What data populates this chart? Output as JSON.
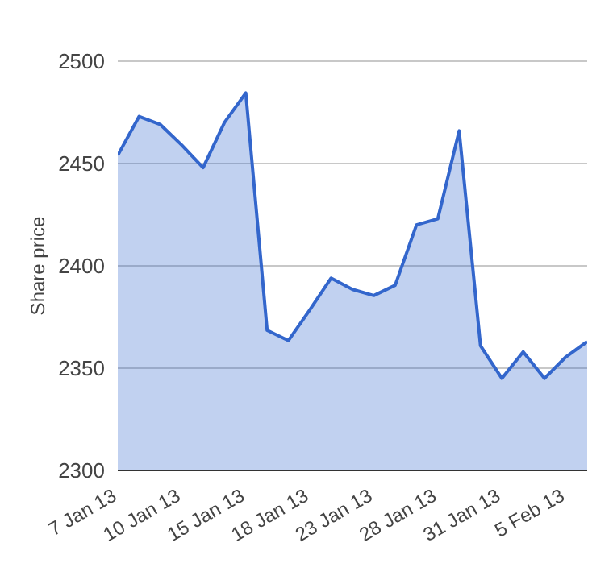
{
  "chart_data": {
    "type": "area",
    "ylabel": "Share price",
    "categories": [
      "7 Jan 13",
      null,
      null,
      "10 Jan 13",
      null,
      null,
      "15 Jan 13",
      null,
      null,
      "18 Jan 13",
      null,
      null,
      "23 Jan 13",
      null,
      null,
      "28 Jan 13",
      null,
      null,
      "31 Jan 13",
      null,
      null,
      "5 Feb 13",
      null
    ],
    "series": [
      {
        "color": "#3366cc",
        "values": [
          2454,
          2473,
          2469,
          2459,
          2448,
          2470,
          2484.5,
          2368.5,
          2363.5,
          2378.5,
          2394,
          2388.5,
          2385.5,
          2390.5,
          2420,
          2423,
          2466,
          2361,
          2345,
          2358,
          2345,
          2355.5,
          2363
        ]
      }
    ],
    "ylim": [
      2300,
      2500
    ],
    "yticks": [
      2300,
      2350,
      2400,
      2450,
      2500
    ],
    "grid": "y",
    "legend": false
  }
}
